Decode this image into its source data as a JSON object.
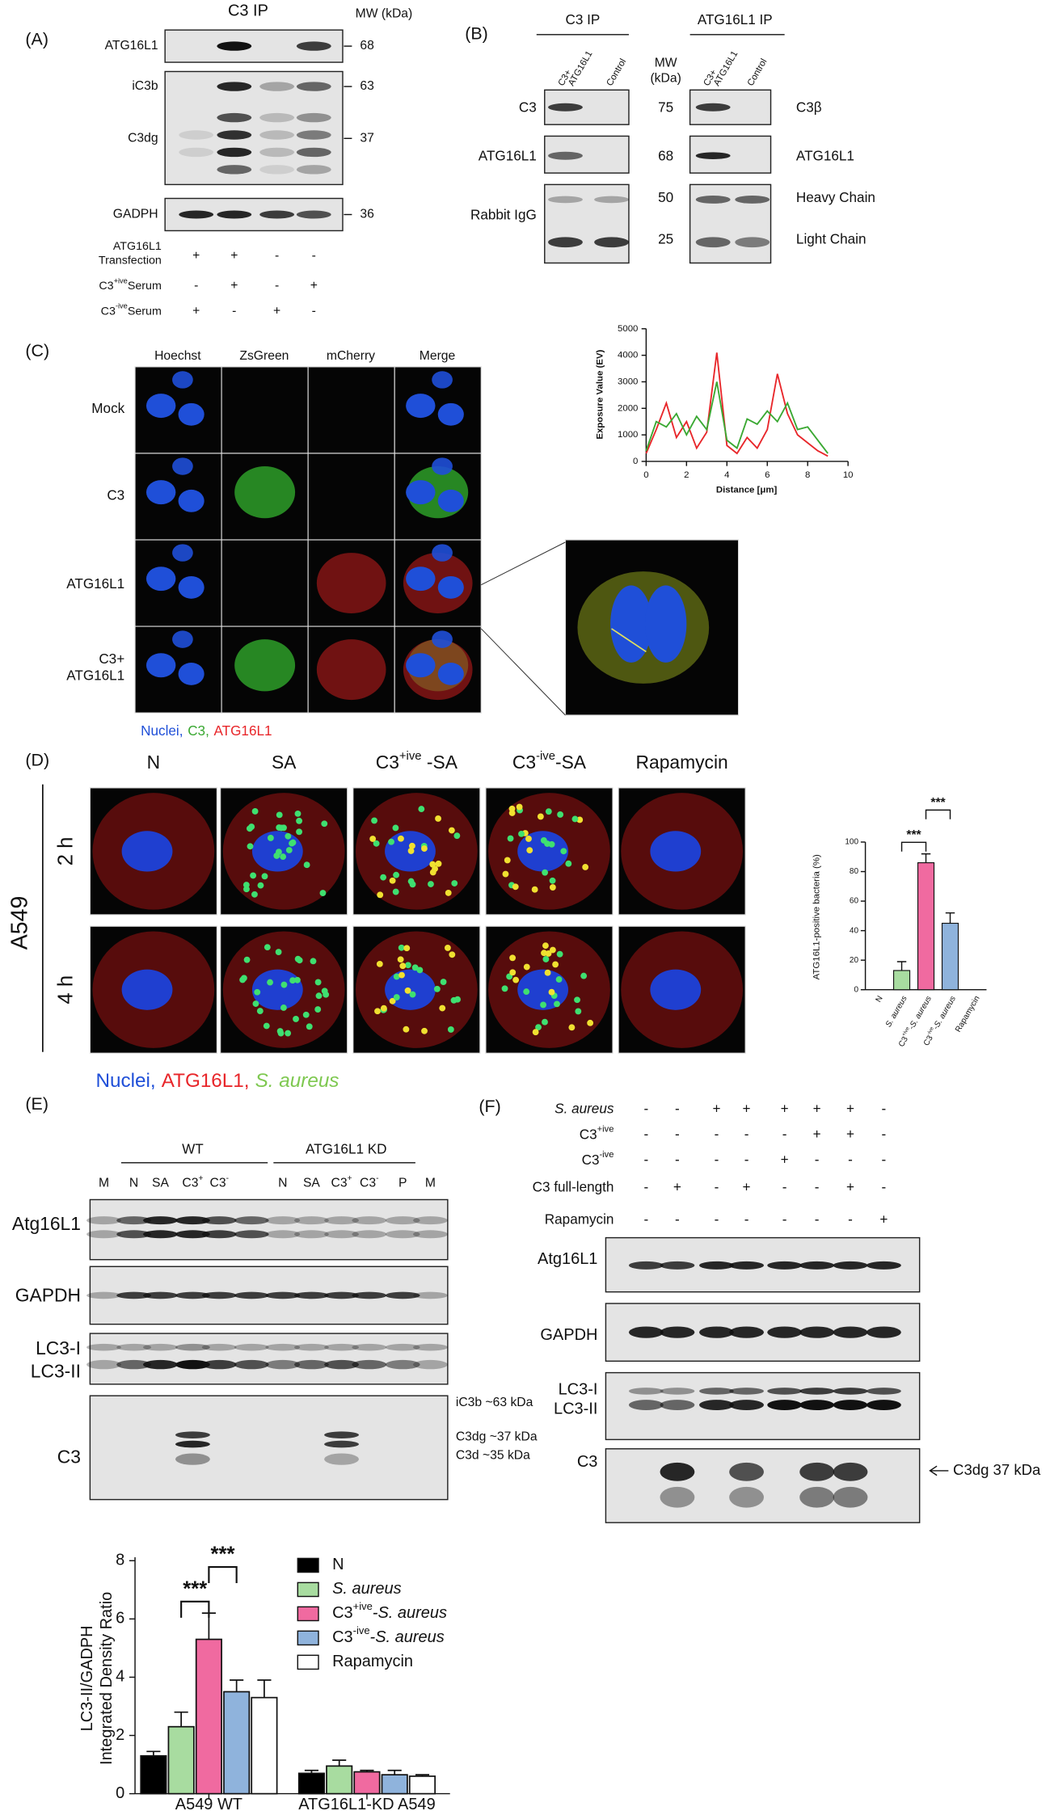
{
  "panel_a": {
    "label": "(A)",
    "title": "C3 IP",
    "mw_header": "MW (kDa)",
    "rows": [
      "ATG16L1",
      "iC3b",
      "C3dg",
      "GADPH"
    ],
    "mw": [
      "68",
      "63",
      "37",
      "36"
    ],
    "conditions": [
      {
        "label": [
          "ATG16L1",
          "Transfection"
        ],
        "signs": [
          "+",
          "+",
          "-",
          "-"
        ]
      },
      {
        "label": {
          "base": "C3",
          "sup": "+ive",
          "rest": "Serum"
        },
        "signs": [
          "-",
          "+",
          "-",
          "+"
        ]
      },
      {
        "label": {
          "base": "C3",
          "sup": "-ive",
          "rest": "Serum"
        },
        "signs": [
          "+",
          "-",
          "+",
          "-"
        ]
      }
    ]
  },
  "panel_b": {
    "label": "(B)",
    "groups": [
      "C3 IP",
      "ATG16L1 IP"
    ],
    "lanes": [
      [
        "C3+",
        "ATG16L1"
      ],
      "Control"
    ],
    "mw_header": [
      "MW",
      "(kDa)"
    ],
    "left_rows": [
      "C3",
      "ATG16L1",
      "Rabbit IgG"
    ],
    "mw": [
      "75",
      "68",
      "50",
      "25"
    ],
    "right_rows": [
      "C3β",
      "ATG16L1",
      "Heavy Chain",
      "Light Chain"
    ]
  },
  "panel_c": {
    "label": "(C)",
    "columns": [
      "Hoechst",
      "ZsGreen",
      "mCherry",
      "Merge"
    ],
    "rows": [
      "Mock",
      "C3",
      "ATG16L1",
      [
        "C3+",
        "ATG16L1"
      ]
    ],
    "legend": [
      {
        "text": "Nuclei,",
        "color": "#1f4fd8"
      },
      {
        "text": "C3,",
        "color": "#3aa832"
      },
      {
        "text": "ATG16L1",
        "color": "#e8262a"
      }
    ],
    "chart_data": {
      "type": "line",
      "ylabel": "Exposure Value (EV)",
      "xlabel": "Distance [μm]",
      "x": [
        0,
        0.5,
        1,
        1.5,
        2,
        2.5,
        3,
        3.5,
        4,
        4.5,
        5,
        5.5,
        6,
        6.5,
        7,
        7.5,
        8,
        8.5,
        9
      ],
      "series": [
        {
          "color": "#e8262a",
          "values": [
            300,
            1200,
            2200,
            900,
            1500,
            500,
            1100,
            4100,
            600,
            300,
            900,
            500,
            1200,
            3300,
            1800,
            1000,
            700,
            400,
            200
          ]
        },
        {
          "color": "#3aa832",
          "values": [
            400,
            1500,
            1300,
            1800,
            1000,
            1700,
            1200,
            3000,
            800,
            500,
            1600,
            1400,
            1900,
            1500,
            2200,
            1200,
            1300,
            800,
            300
          ]
        }
      ],
      "xlim": [
        0,
        10
      ],
      "ylim": [
        0,
        5000
      ],
      "xticks": [
        0,
        2,
        4,
        6,
        8,
        10
      ],
      "yticks": [
        0,
        1000,
        2000,
        3000,
        4000,
        5000
      ]
    }
  },
  "panel_d": {
    "label": "(D)",
    "columns": [
      "N",
      "SA",
      {
        "base": "C3",
        "sup": "+ive",
        "rest": " -SA"
      },
      {
        "base": "C3",
        "sup": "-ive",
        "rest": "-SA"
      },
      "Rapamycin"
    ],
    "rows": [
      "2 h",
      "4 h"
    ],
    "cell_line": "A549",
    "legend": [
      {
        "text": "Nuclei,",
        "color": "#1f4fd8"
      },
      {
        "text": "ATG16L1,",
        "color": "#e8262a"
      },
      {
        "text": "S. aureus",
        "color": "#7ec850"
      }
    ],
    "chart_data": {
      "type": "bar",
      "ylabel": "ATG16L1-positive bacteria (%)",
      "categories": [
        "N",
        "S. aureus",
        {
          "base": "C3",
          "sup": "+ive",
          "rest": "-S. aureus"
        },
        {
          "base": "C3",
          "sup": "-ive",
          "rest": "-S. aureus"
        },
        "Rapamycin"
      ],
      "values": [
        0,
        13,
        86,
        45,
        0
      ],
      "errors": [
        0,
        6,
        6,
        7,
        0
      ],
      "colors": [
        "#000000",
        "#a8dca0",
        "#f06aa0",
        "#8fb3dc",
        "#ffffff"
      ],
      "ylim": [
        0,
        100
      ],
      "yticks": [
        0,
        20,
        40,
        60,
        80,
        100
      ],
      "significance": [
        {
          "pair": [
            1,
            2
          ],
          "label": "***"
        },
        {
          "pair": [
            2,
            3
          ],
          "label": "***"
        }
      ]
    }
  },
  "panel_e": {
    "label": "(E)",
    "groups": [
      "WT",
      "ATG16L1 KD"
    ],
    "lanes": [
      "M",
      "N",
      "SA",
      {
        "base": "C3",
        "sup": "+"
      },
      {
        "base": "C3",
        "sup": "-"
      },
      "N",
      "SA",
      {
        "base": "C3",
        "sup": "+"
      },
      {
        "base": "C3",
        "sup": "-"
      },
      "P",
      "M"
    ],
    "rows": [
      "Atg16L1",
      "GAPDH",
      "LC3-I",
      "LC3-II",
      "C3"
    ],
    "annotations": [
      "iC3b ~63 kDa",
      "C3dg ~37 kDa",
      "C3d ~35 kDa"
    ]
  },
  "panel_f": {
    "label": "(F)",
    "conditions": [
      {
        "label": "S. aureus",
        "signs": [
          "-",
          "-",
          "+",
          "+",
          "+",
          "+",
          "+",
          "-"
        ]
      },
      {
        "label": {
          "base": "C3",
          "sup": "+ive"
        },
        "signs": [
          "-",
          "-",
          "-",
          "-",
          "-",
          "+",
          "+",
          "-"
        ]
      },
      {
        "label": {
          "base": "C3",
          "sup": "-ive"
        },
        "signs": [
          "-",
          "-",
          "-",
          "-",
          "+",
          "-",
          "-",
          "-"
        ]
      },
      {
        "label": "C3 full-length",
        "signs": [
          "-",
          "+",
          "-",
          "+",
          "-",
          "-",
          "+",
          "-"
        ]
      },
      {
        "label": "Rapamycin",
        "signs": [
          "-",
          "-",
          "-",
          "-",
          "-",
          "-",
          "-",
          "+"
        ]
      }
    ],
    "rows": [
      "Atg16L1",
      "GAPDH",
      "LC3-I",
      "LC3-II",
      "C3"
    ],
    "annotation": "C3dg 37 kDa"
  },
  "bottom_chart": {
    "chart_data": {
      "type": "grouped_bar",
      "ylabel": [
        "LC3-II/GADPH",
        "Integrated Density  Ratio"
      ],
      "categories": [
        "A549 WT",
        "ATG16L1-KD A549"
      ],
      "series": [
        {
          "name": "N",
          "color": "#000000",
          "values": [
            1.3,
            0.7
          ],
          "errors": [
            0.15,
            0.1
          ]
        },
        {
          "name": "S. aureus",
          "color": "#a8dca0",
          "values": [
            2.3,
            0.95
          ],
          "errors": [
            0.5,
            0.2
          ]
        },
        {
          "name": {
            "base": "C3",
            "sup": "+ive",
            "rest": "-S. aureus"
          },
          "color": "#f06aa0",
          "values": [
            5.3,
            0.75
          ],
          "errors": [
            0.9,
            0.05
          ]
        },
        {
          "name": {
            "base": "C3",
            "sup": "-ive",
            "rest": "-S. aureus"
          },
          "color": "#8fb3dc",
          "values": [
            3.5,
            0.65
          ],
          "errors": [
            0.4,
            0.15
          ]
        },
        {
          "name": "Rapamycin",
          "color": "#ffffff",
          "values": [
            3.3,
            0.6
          ],
          "errors": [
            0.6,
            0.05
          ]
        }
      ],
      "ylim": [
        0,
        8
      ],
      "yticks": [
        0,
        2,
        4,
        6,
        8
      ],
      "significance": [
        {
          "group": 0,
          "pair": [
            1,
            2
          ],
          "label": "***"
        },
        {
          "group": 0,
          "pair": [
            2,
            3
          ],
          "label": "***"
        }
      ]
    }
  }
}
